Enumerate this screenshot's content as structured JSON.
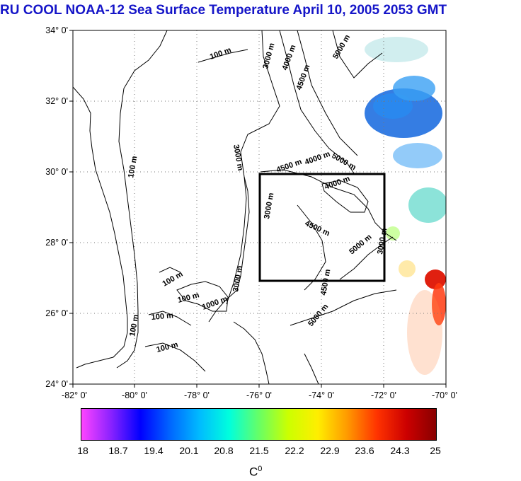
{
  "title": "RU COOL  NOAA-12 Sea Surface Temperature April 10, 2005 2053 GMT",
  "map": {
    "lat_labels": [
      "34° 0'",
      "32° 0'",
      "30° 0'",
      "28° 0'",
      "26° 0'",
      "24° 0'"
    ],
    "lon_labels": [
      "-82° 0'",
      "-80° 0'",
      "-78° 0'",
      "-76° 0'",
      "-74° 0'",
      "-72° 0'",
      "-70° 0'"
    ],
    "lat_range": [
      24,
      34
    ],
    "lon_range": [
      -82,
      -70
    ],
    "grid": "dotted",
    "region_box": {
      "lon": [
        -76,
        -72
      ],
      "lat": [
        27,
        30
      ]
    },
    "contour_labels": [
      "100 m",
      "100 m",
      "100 m",
      "100 m",
      "100 m",
      "100 m",
      "100 m",
      "1000 m",
      "3000 m",
      "3000 m",
      "3000 m",
      "3000 m",
      "4000 m",
      "4000 m",
      "4000 m",
      "4500 m",
      "4500 m",
      "4500 m",
      "4500 m",
      "5000 m",
      "5000 m",
      "5000 m",
      "5000 m",
      "3000 m"
    ]
  },
  "colorbar": {
    "ticks": [
      "18",
      "18.7",
      "19.4",
      "20.1",
      "20.8",
      "21.5",
      "22.2",
      "22.9",
      "23.6",
      "24.3",
      "25"
    ],
    "unit": "C",
    "unit_sup": "0",
    "colors": [
      "#ff44ff",
      "#8a22ff",
      "#0000ff",
      "#0066ff",
      "#00bbff",
      "#00ffdd",
      "#66ff66",
      "#ccff00",
      "#ffee00",
      "#ff9900",
      "#ff3300",
      "#cc0000",
      "#880000"
    ]
  },
  "sst_patches": [
    {
      "color": "#1f6fe0"
    },
    {
      "color": "#2a88ee"
    },
    {
      "color": "#3aa0f4"
    },
    {
      "color": "#5bd7c9"
    },
    {
      "color": "#e02010"
    },
    {
      "color": "#ff3a10"
    },
    {
      "color": "#b8ff7a"
    },
    {
      "color": "#ffd040"
    }
  ]
}
